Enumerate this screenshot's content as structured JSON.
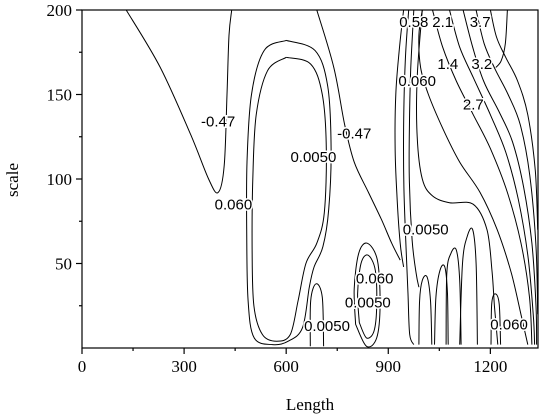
{
  "chart_data": {
    "type": "contour",
    "title": "",
    "xlabel": "Length",
    "ylabel": "scale",
    "xlim": [
      0,
      1340
    ],
    "ylim": [
      0,
      200
    ],
    "x_ticks": [
      0,
      300,
      600,
      900,
      1200
    ],
    "y_ticks": [
      50,
      100,
      150,
      200
    ],
    "x_tick_labels": [
      "0",
      "300",
      "600",
      "900",
      "1200"
    ],
    "y_tick_labels": [
      "50",
      "100",
      "150",
      "200"
    ],
    "grid": false,
    "legend": "none",
    "line_color": "#000000",
    "contour_labels": [
      {
        "text": "-0.47",
        "x": 400,
        "y": 134
      },
      {
        "text": "-0.47",
        "x": 800,
        "y": 127
      },
      {
        "text": "0.0050",
        "x": 680,
        "y": 113
      },
      {
        "text": "0.060",
        "x": 445,
        "y": 85
      },
      {
        "text": "0.0050",
        "x": 1010,
        "y": 70
      },
      {
        "text": "0.060",
        "x": 860,
        "y": 41
      },
      {
        "text": "0.0050",
        "x": 840,
        "y": 27
      },
      {
        "text": "0.0050",
        "x": 720,
        "y": 13
      },
      {
        "text": "0.060",
        "x": 1255,
        "y": 14
      },
      {
        "text": "0.58",
        "x": 975,
        "y": 193
      },
      {
        "text": "2.1",
        "x": 1060,
        "y": 193
      },
      {
        "text": "3.7",
        "x": 1170,
        "y": 193
      },
      {
        "text": "1.4",
        "x": 1075,
        "y": 168
      },
      {
        "text": "3.2",
        "x": 1175,
        "y": 168
      },
      {
        "text": "0.060",
        "x": 985,
        "y": 158
      },
      {
        "text": "2.7",
        "x": 1150,
        "y": 144
      }
    ],
    "contour_paths": [
      {
        "level": "-0.47",
        "points": [
          [
            130,
            200
          ],
          [
            230,
            166
          ],
          [
            320,
            126
          ],
          [
            372,
            100
          ],
          [
            400,
            92
          ],
          [
            418,
            108
          ],
          [
            426,
            150
          ],
          [
            432,
            185
          ],
          [
            440,
            200
          ]
        ]
      },
      {
        "level": "0.060",
        "points": [
          [
            600,
            172
          ],
          [
            545,
            164
          ],
          [
            512,
            138
          ],
          [
            502,
            100
          ],
          [
            500,
            60
          ],
          [
            505,
            25
          ],
          [
            530,
            8
          ],
          [
            572,
            4
          ],
          [
            612,
            8
          ],
          [
            635,
            28
          ],
          [
            658,
            50
          ],
          [
            690,
            62
          ],
          [
            712,
            80
          ],
          [
            718,
            118
          ],
          [
            706,
            150
          ],
          [
            672,
            168
          ],
          [
            600,
            172
          ]
        ]
      },
      {
        "level": "0.0050",
        "points": [
          [
            600,
            182
          ],
          [
            535,
            176
          ],
          [
            498,
            150
          ],
          [
            485,
            110
          ],
          [
            484,
            70
          ],
          [
            488,
            28
          ],
          [
            506,
            6
          ],
          [
            560,
            2
          ],
          [
            606,
            4
          ],
          [
            648,
            12
          ],
          [
            668,
            36
          ],
          [
            682,
            48
          ],
          [
            708,
            60
          ],
          [
            725,
            82
          ],
          [
            732,
            118
          ],
          [
            722,
            155
          ],
          [
            685,
            176
          ],
          [
            600,
            182
          ]
        ]
      },
      {
        "level": "-0.47",
        "points": [
          [
            690,
            200
          ],
          [
            740,
            166
          ],
          [
            772,
            132
          ],
          [
            800,
            110
          ],
          [
            842,
            92
          ],
          [
            880,
            76
          ],
          [
            910,
            62
          ],
          [
            935,
            52
          ]
        ]
      },
      {
        "level": "-0.47",
        "points": [
          [
            945,
            200
          ],
          [
            932,
            176
          ],
          [
            922,
            150
          ],
          [
            920,
            120
          ],
          [
            925,
            92
          ],
          [
            935,
            62
          ],
          [
            945,
            48
          ]
        ]
      },
      {
        "level": "0.0050",
        "points": [
          [
            671,
            1
          ],
          [
            672,
            28
          ],
          [
            688,
            38
          ],
          [
            706,
            30
          ],
          [
            710,
            1
          ]
        ]
      },
      {
        "level": "0.060",
        "points": [
          [
            815,
            15
          ],
          [
            810,
            32
          ],
          [
            820,
            50
          ],
          [
            840,
            55
          ],
          [
            862,
            46
          ],
          [
            866,
            25
          ],
          [
            858,
            10
          ],
          [
            836,
            6
          ],
          [
            815,
            15
          ]
        ]
      },
      {
        "level": "0.0050",
        "points": [
          [
            804,
            14
          ],
          [
            800,
            35
          ],
          [
            813,
            56
          ],
          [
            838,
            62
          ],
          [
            868,
            52
          ],
          [
            876,
            26
          ],
          [
            866,
            6
          ],
          [
            836,
            1
          ],
          [
            804,
            14
          ]
        ]
      },
      {
        "level": "0.060",
        "points": [
          [
            960,
            200
          ],
          [
            950,
            170
          ],
          [
            945,
            130
          ],
          [
            946,
            95
          ],
          [
            952,
            60
          ],
          [
            958,
            32
          ],
          [
            963,
            8
          ],
          [
            975,
            2
          ]
        ]
      },
      {
        "level": "0.0050",
        "points": [
          [
            975,
            200
          ],
          [
            966,
            165
          ],
          [
            962,
            130
          ],
          [
            962,
            98
          ],
          [
            970,
            64
          ],
          [
            982,
            44
          ],
          [
            990,
            36
          ]
        ]
      },
      {
        "level": "0.060",
        "points": [
          [
            990,
            2
          ],
          [
            992,
            28
          ],
          [
            1000,
            40
          ],
          [
            1014,
            42
          ],
          [
            1024,
            28
          ],
          [
            1028,
            2
          ]
        ]
      },
      {
        "level": "0.0050",
        "points": [
          [
            1036,
            2
          ],
          [
            1040,
            30
          ],
          [
            1052,
            46
          ],
          [
            1066,
            48
          ],
          [
            1074,
            32
          ],
          [
            1076,
            2
          ]
        ]
      },
      {
        "level": "0.060",
        "points": [
          [
            1070,
            2
          ],
          [
            1072,
            44
          ],
          [
            1084,
            56
          ],
          [
            1100,
            58
          ],
          [
            1110,
            40
          ],
          [
            1114,
            2
          ]
        ]
      },
      {
        "level": "0.0050",
        "points": [
          [
            1110,
            2
          ],
          [
            1118,
            50
          ],
          [
            1132,
            66
          ],
          [
            1148,
            70
          ],
          [
            1158,
            50
          ],
          [
            1162,
            2
          ]
        ]
      },
      {
        "level": "0.0050",
        "points": [
          [
            1000,
            200
          ],
          [
            985,
            160
          ],
          [
            985,
            125
          ],
          [
            1000,
            100
          ],
          [
            1030,
            90
          ],
          [
            1080,
            86
          ],
          [
            1150,
            85
          ],
          [
            1190,
            70
          ],
          [
            1205,
            45
          ],
          [
            1212,
            25
          ],
          [
            1222,
            2
          ]
        ]
      },
      {
        "level": "0.060",
        "points": [
          [
            1202,
            2
          ],
          [
            1204,
            26
          ],
          [
            1214,
            32
          ],
          [
            1226,
            26
          ],
          [
            1230,
            2
          ]
        ]
      },
      {
        "level": "0.58",
        "points": [
          [
            1000,
            200
          ],
          [
            990,
            185
          ],
          [
            995,
            166
          ],
          [
            1018,
            150
          ],
          [
            1060,
            130
          ],
          [
            1110,
            110
          ],
          [
            1170,
            92
          ],
          [
            1220,
            70
          ],
          [
            1262,
            44
          ],
          [
            1292,
            18
          ],
          [
            1310,
            2
          ]
        ]
      },
      {
        "level": "1.4",
        "points": [
          [
            1030,
            200
          ],
          [
            1060,
            178
          ],
          [
            1100,
            158
          ],
          [
            1150,
            138
          ],
          [
            1200,
            118
          ],
          [
            1250,
            92
          ],
          [
            1290,
            62
          ],
          [
            1315,
            30
          ],
          [
            1322,
            2
          ]
        ]
      },
      {
        "level": "2.1",
        "points": [
          [
            1080,
            200
          ],
          [
            1110,
            178
          ],
          [
            1150,
            160
          ],
          [
            1200,
            138
          ],
          [
            1245,
            116
          ],
          [
            1282,
            88
          ],
          [
            1310,
            55
          ],
          [
            1326,
            20
          ],
          [
            1330,
            2
          ]
        ]
      },
      {
        "level": "2.7",
        "points": [
          [
            1120,
            200
          ],
          [
            1148,
            178
          ],
          [
            1180,
            158
          ],
          [
            1225,
            140
          ],
          [
            1265,
            122
          ],
          [
            1298,
            95
          ],
          [
            1322,
            62
          ],
          [
            1334,
            25
          ],
          [
            1336,
            2
          ]
        ]
      },
      {
        "level": "3.2",
        "points": [
          [
            1158,
            200
          ],
          [
            1182,
            180
          ],
          [
            1214,
            165
          ],
          [
            1252,
            150
          ],
          [
            1288,
            132
          ],
          [
            1316,
            102
          ],
          [
            1334,
            60
          ],
          [
            1339,
            20
          ]
        ]
      },
      {
        "level": "3.7",
        "points": [
          [
            1200,
            200
          ],
          [
            1218,
            184
          ],
          [
            1245,
            172
          ],
          [
            1280,
            158
          ],
          [
            1310,
            138
          ],
          [
            1332,
            105
          ],
          [
            1339,
            70
          ]
        ]
      },
      {
        "level": "0.060",
        "points": [
          [
            1250,
            200
          ],
          [
            1244,
            180
          ],
          [
            1232,
            170
          ],
          [
            1216,
            166
          ]
        ]
      }
    ]
  }
}
